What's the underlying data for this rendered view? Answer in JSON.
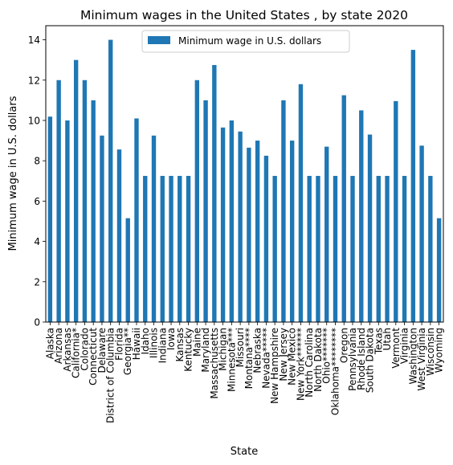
{
  "chart_data": {
    "type": "bar",
    "title": "Minimum wages in the United States , by state 2020",
    "xlabel": "State",
    "ylabel": "Minimum wage in U.S. dollars",
    "ylim": [
      0,
      14.7
    ],
    "yticks": [
      0,
      2,
      4,
      6,
      8,
      10,
      12,
      14
    ],
    "legend": {
      "placement": "top-center",
      "entries": [
        "Minimum wage in U.S. dollars"
      ]
    },
    "bar_color": "#1f77b4",
    "grid": false,
    "categories": [
      "Alaska",
      "Arizona",
      "Arkansas",
      "California*",
      "Colorado",
      "Connecticut",
      "Delaware",
      "District of Columbia",
      "Florida",
      "Georgia**",
      "Hawaii",
      "Idaho",
      "Illinois",
      "Indiana",
      "Iowa",
      "Kansas",
      "Kentucky",
      "Maine",
      "Maryland",
      "Massachusetts",
      "Michigan",
      "Minnesota***",
      "Missouri",
      "Montana****",
      "Nebraska",
      "Nevada*****",
      "New Hampshire",
      "New Jersey",
      "New Mexico",
      "New York******",
      "North Carolina",
      "North Dakota",
      "Ohio*******",
      "Oklahoma********",
      "Oregon",
      "Pennsylvania",
      "Rhode Island",
      "South Dakota",
      "Texas",
      "Utah",
      "Vermont",
      "Virginia",
      "Washington",
      "West Virginia",
      "Wisconsin",
      "Wyoming"
    ],
    "series": [
      {
        "name": "Minimum wage in U.S. dollars",
        "values": [
          10.19,
          12.0,
          10.0,
          13.0,
          12.0,
          11.0,
          9.25,
          14.0,
          8.56,
          5.15,
          10.1,
          7.25,
          9.25,
          7.25,
          7.25,
          7.25,
          7.25,
          12.0,
          11.0,
          12.75,
          9.65,
          10.0,
          9.45,
          8.65,
          9.0,
          8.25,
          7.25,
          11.0,
          9.0,
          11.8,
          7.25,
          7.25,
          8.7,
          7.25,
          11.25,
          7.25,
          10.5,
          9.3,
          7.25,
          7.25,
          10.96,
          7.25,
          13.5,
          8.75,
          7.25,
          5.15
        ]
      }
    ]
  }
}
